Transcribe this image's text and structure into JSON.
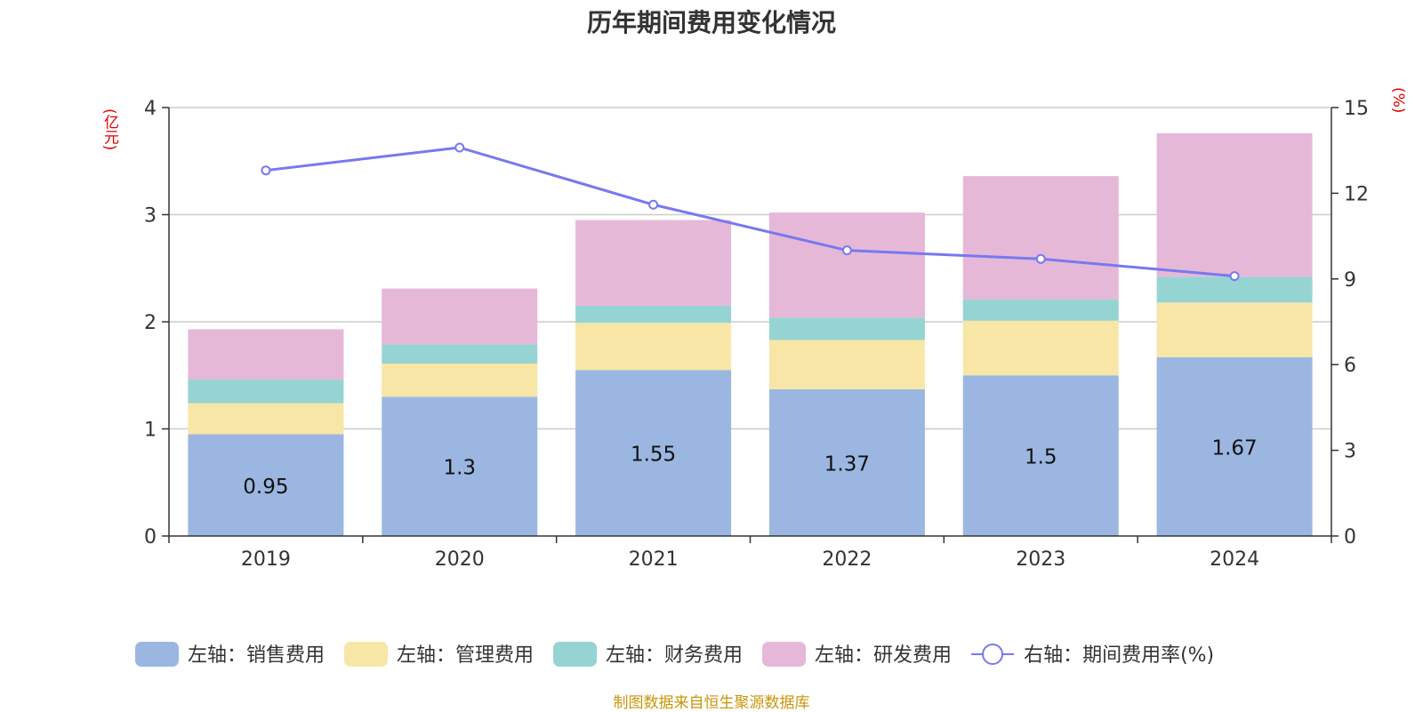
{
  "title": "历年期间费用变化情况",
  "units": {
    "left": "(亿元)",
    "right": "(%)"
  },
  "source": "制图数据来自恒生聚源数据库",
  "colors": {
    "sales": "#9bb7e1",
    "admin": "#f7e6a6",
    "finance": "#96d4d3",
    "rnd": "#e6b8d8",
    "rate": "#7679ef",
    "grid": "#cccccc",
    "axis": "#333333",
    "unit": "#e00000",
    "source": "#c8960a"
  },
  "chart_data": {
    "type": "bar",
    "stacked": true,
    "title": "历年期间费用变化情况",
    "categories": [
      "2019",
      "2020",
      "2021",
      "2022",
      "2023",
      "2024"
    ],
    "y_left": {
      "label": "(亿元)",
      "min": 0,
      "max": 4,
      "ticks": [
        "0",
        "1",
        "2",
        "3",
        "4"
      ]
    },
    "y_right": {
      "label": "(%)",
      "min": 0,
      "max": 15,
      "ticks": [
        "0",
        "3",
        "6",
        "9",
        "12",
        "15"
      ]
    },
    "series": [
      {
        "key": "sales",
        "name": "左轴：销售费用",
        "axis": "left",
        "values": [
          0.95,
          1.3,
          1.55,
          1.37,
          1.5,
          1.67
        ],
        "labels": [
          "0.95",
          "1.3",
          "1.55",
          "1.37",
          "1.5",
          "1.67"
        ]
      },
      {
        "key": "admin",
        "name": "左轴：管理费用",
        "axis": "left",
        "values": [
          0.29,
          0.31,
          0.44,
          0.46,
          0.51,
          0.51
        ]
      },
      {
        "key": "finance",
        "name": "左轴：财务费用",
        "axis": "left",
        "values": [
          0.22,
          0.18,
          0.16,
          0.21,
          0.2,
          0.24
        ]
      },
      {
        "key": "rnd",
        "name": "左轴：研发费用",
        "axis": "left",
        "values": [
          0.47,
          0.52,
          0.8,
          0.98,
          1.15,
          1.34
        ]
      },
      {
        "key": "rate",
        "name": "右轴：期间费用率(%)",
        "axis": "right",
        "type": "line",
        "values": [
          12.8,
          13.6,
          11.6,
          10.0,
          9.7,
          9.1
        ]
      }
    ],
    "legend": "bottom"
  }
}
